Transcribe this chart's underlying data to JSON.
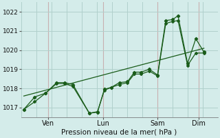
{
  "xlabel": "Pression niveau de la mer( hPa )",
  "background_color": "#d4ecea",
  "grid_color": "#b0d0cc",
  "grid_color_v": "#c8b0b0",
  "line_color": "#1a5c1a",
  "ylim": [
    1016.5,
    1022.5
  ],
  "day_labels": [
    "Ven",
    "Lun",
    "Sam",
    "Dim"
  ],
  "day_positions": [
    1,
    3,
    5,
    6.5
  ],
  "yticks": [
    1017,
    1018,
    1019,
    1020,
    1021,
    1022
  ],
  "xlim": [
    0,
    7.2
  ],
  "series1_x": [
    0.1,
    0.5,
    0.9,
    1.3,
    1.6,
    1.9,
    2.5,
    2.8,
    3.05,
    3.3,
    3.6,
    3.9,
    4.15,
    4.4,
    4.7,
    5.0,
    5.3,
    5.55,
    5.75,
    6.1,
    6.4,
    6.7
  ],
  "series1_y": [
    1016.9,
    1017.55,
    1017.75,
    1018.3,
    1018.3,
    1018.2,
    1016.7,
    1016.75,
    1017.95,
    1018.05,
    1018.3,
    1018.35,
    1018.85,
    1018.85,
    1019.0,
    1018.7,
    1021.55,
    1021.6,
    1021.8,
    1019.3,
    1020.6,
    1019.9
  ],
  "series2_x": [
    0.1,
    0.5,
    0.9,
    1.3,
    1.6,
    1.9,
    2.5,
    2.8,
    3.05,
    3.3,
    3.6,
    3.9,
    4.15,
    4.4,
    4.7,
    5.0,
    5.3,
    5.55,
    5.75,
    6.1,
    6.4,
    6.7
  ],
  "series2_y": [
    1016.9,
    1017.3,
    1017.75,
    1018.25,
    1018.25,
    1018.1,
    1016.7,
    1016.78,
    1017.9,
    1018.05,
    1018.2,
    1018.3,
    1018.75,
    1018.75,
    1018.9,
    1018.65,
    1021.4,
    1021.5,
    1021.55,
    1019.2,
    1019.85,
    1019.85
  ],
  "trend_x": [
    0.1,
    6.7
  ],
  "trend_y": [
    1017.6,
    1020.1
  ]
}
